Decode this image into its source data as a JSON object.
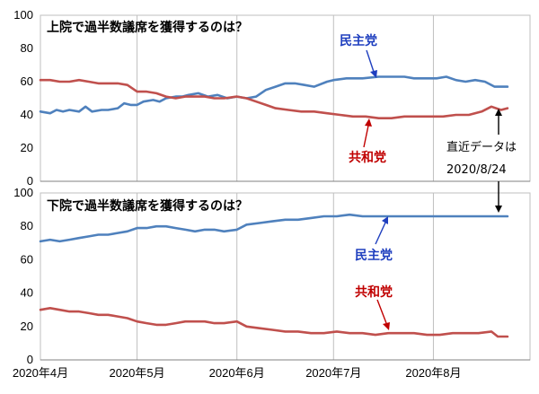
{
  "chart_data": [
    {
      "type": "line",
      "title": "上院で過半数議席を獲得するのは？",
      "ylim": [
        0,
        100
      ],
      "yticks": [
        "0",
        "20",
        "40",
        "60",
        "80",
        "100"
      ],
      "x_range": [
        "2020-04-01",
        "2020-08-31"
      ],
      "grid": "vertical-monthly",
      "series": [
        {
          "name": "民主党",
          "color": "#4f81bd",
          "x": [
            "2020-04-01",
            "2020-04-04",
            "2020-04-06",
            "2020-04-08",
            "2020-04-10",
            "2020-04-13",
            "2020-04-15",
            "2020-04-17",
            "2020-04-20",
            "2020-04-22",
            "2020-04-25",
            "2020-04-27",
            "2020-04-29",
            "2020-05-01",
            "2020-05-03",
            "2020-05-06",
            "2020-05-08",
            "2020-05-10",
            "2020-05-13",
            "2020-05-15",
            "2020-05-17",
            "2020-05-20",
            "2020-05-23",
            "2020-05-26",
            "2020-05-29",
            "2020-06-01",
            "2020-06-04",
            "2020-06-07",
            "2020-06-10",
            "2020-06-13",
            "2020-06-16",
            "2020-06-19",
            "2020-06-22",
            "2020-06-25",
            "2020-06-29",
            "2020-07-01",
            "2020-07-05",
            "2020-07-10",
            "2020-07-15",
            "2020-07-19",
            "2020-07-23",
            "2020-07-26",
            "2020-07-29",
            "2020-08-02",
            "2020-08-05",
            "2020-08-08",
            "2020-08-11",
            "2020-08-14",
            "2020-08-17",
            "2020-08-20",
            "2020-08-24"
          ],
          "y": [
            42,
            41,
            43,
            42,
            43,
            42,
            45,
            42,
            43,
            43,
            44,
            47,
            46,
            46,
            48,
            49,
            48,
            50,
            51,
            51,
            52,
            53,
            51,
            52,
            50,
            51,
            50,
            51,
            55,
            57,
            59,
            59,
            58,
            57,
            60,
            61,
            62,
            62,
            63,
            63,
            63,
            62,
            62,
            62,
            63,
            61,
            60,
            61,
            60,
            57,
            57
          ]
        },
        {
          "name": "共和党",
          "color": "#c0504d",
          "x": [
            "2020-04-01",
            "2020-04-04",
            "2020-04-07",
            "2020-04-10",
            "2020-04-13",
            "2020-04-16",
            "2020-04-19",
            "2020-04-22",
            "2020-04-25",
            "2020-04-28",
            "2020-05-01",
            "2020-05-04",
            "2020-05-07",
            "2020-05-10",
            "2020-05-13",
            "2020-05-16",
            "2020-05-19",
            "2020-05-22",
            "2020-05-25",
            "2020-05-28",
            "2020-06-01",
            "2020-06-04",
            "2020-06-07",
            "2020-06-10",
            "2020-06-13",
            "2020-06-17",
            "2020-06-21",
            "2020-06-25",
            "2020-06-29",
            "2020-07-03",
            "2020-07-07",
            "2020-07-11",
            "2020-07-15",
            "2020-07-19",
            "2020-07-23",
            "2020-07-27",
            "2020-07-31",
            "2020-08-04",
            "2020-08-08",
            "2020-08-12",
            "2020-08-16",
            "2020-08-19",
            "2020-08-22",
            "2020-08-24"
          ],
          "y": [
            61,
            61,
            60,
            60,
            61,
            60,
            59,
            59,
            59,
            58,
            54,
            54,
            53,
            51,
            50,
            51,
            51,
            51,
            50,
            50,
            51,
            50,
            48,
            46,
            44,
            43,
            42,
            42,
            41,
            40,
            39,
            39,
            38,
            38,
            39,
            39,
            39,
            39,
            40,
            40,
            42,
            45,
            43,
            44
          ]
        }
      ]
    },
    {
      "type": "line",
      "title": "下院で過半数議席を獲得するのは？",
      "ylim": [
        0,
        100
      ],
      "yticks": [
        "0",
        "20",
        "40",
        "60",
        "80",
        "100"
      ],
      "x_range": [
        "2020-04-01",
        "2020-08-31"
      ],
      "xticks": [
        "2020年4月",
        "2020年5月",
        "2020年6月",
        "2020年7月",
        "2020年8月"
      ],
      "grid": "vertical-monthly",
      "series": [
        {
          "name": "民主党",
          "color": "#4f81bd",
          "x": [
            "2020-04-01",
            "2020-04-04",
            "2020-04-07",
            "2020-04-10",
            "2020-04-13",
            "2020-04-16",
            "2020-04-19",
            "2020-04-22",
            "2020-04-25",
            "2020-04-28",
            "2020-05-01",
            "2020-05-04",
            "2020-05-07",
            "2020-05-10",
            "2020-05-13",
            "2020-05-16",
            "2020-05-19",
            "2020-05-22",
            "2020-05-25",
            "2020-05-28",
            "2020-06-01",
            "2020-06-04",
            "2020-06-08",
            "2020-06-12",
            "2020-06-16",
            "2020-06-20",
            "2020-06-24",
            "2020-06-28",
            "2020-07-02",
            "2020-07-06",
            "2020-07-10",
            "2020-07-14",
            "2020-07-18",
            "2020-07-22",
            "2020-07-26",
            "2020-07-30",
            "2020-08-03",
            "2020-08-07",
            "2020-08-11",
            "2020-08-15",
            "2020-08-19",
            "2020-08-22",
            "2020-08-24"
          ],
          "y": [
            71,
            72,
            71,
            72,
            73,
            74,
            75,
            75,
            76,
            77,
            79,
            79,
            80,
            80,
            79,
            78,
            77,
            78,
            78,
            77,
            78,
            81,
            82,
            83,
            84,
            84,
            85,
            86,
            86,
            87,
            86,
            86,
            86,
            86,
            86,
            86,
            86,
            86,
            86,
            86,
            86,
            86,
            86
          ]
        },
        {
          "name": "共和党",
          "color": "#c0504d",
          "x": [
            "2020-04-01",
            "2020-04-04",
            "2020-04-07",
            "2020-04-10",
            "2020-04-13",
            "2020-04-16",
            "2020-04-19",
            "2020-04-22",
            "2020-04-25",
            "2020-04-28",
            "2020-05-01",
            "2020-05-04",
            "2020-05-07",
            "2020-05-10",
            "2020-05-13",
            "2020-05-16",
            "2020-05-19",
            "2020-05-22",
            "2020-05-25",
            "2020-05-28",
            "2020-06-01",
            "2020-06-04",
            "2020-06-08",
            "2020-06-12",
            "2020-06-16",
            "2020-06-20",
            "2020-06-24",
            "2020-06-28",
            "2020-07-02",
            "2020-07-06",
            "2020-07-10",
            "2020-07-14",
            "2020-07-18",
            "2020-07-22",
            "2020-07-26",
            "2020-07-30",
            "2020-08-03",
            "2020-08-07",
            "2020-08-11",
            "2020-08-15",
            "2020-08-19",
            "2020-08-21",
            "2020-08-24"
          ],
          "y": [
            30,
            31,
            30,
            29,
            29,
            28,
            27,
            27,
            26,
            25,
            23,
            22,
            21,
            21,
            22,
            23,
            23,
            23,
            22,
            22,
            23,
            20,
            19,
            18,
            17,
            17,
            16,
            16,
            17,
            16,
            16,
            15,
            16,
            16,
            16,
            15,
            15,
            16,
            16,
            16,
            17,
            14,
            14
          ]
        }
      ]
    }
  ],
  "annotations": {
    "upper_dem_label": "民主党",
    "upper_rep_label": "共和党",
    "lower_dem_label": "民主党",
    "lower_rep_label": "共和党",
    "note_line1": "直近データは",
    "note_line2": "2020/8/24"
  }
}
